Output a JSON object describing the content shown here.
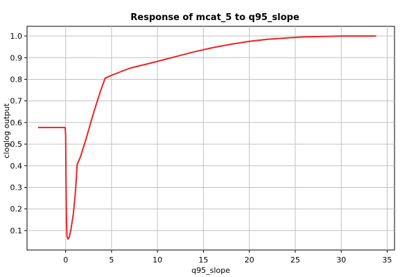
{
  "chart_data": {
    "type": "line",
    "title": "Response of mcat_5 to q95_slope",
    "xlabel": "q95_slope",
    "ylabel": "cloglog output",
    "xlim": [
      -4.2,
      35.8
    ],
    "ylim": [
      0.01,
      1.045
    ],
    "x_ticks": [
      0,
      5,
      10,
      15,
      20,
      25,
      30,
      35
    ],
    "y_ticks": [
      0.1,
      0.2,
      0.3,
      0.4,
      0.5,
      0.6,
      0.7,
      0.8,
      0.9,
      1.0
    ],
    "x_tick_labels": [
      "0",
      "5",
      "10",
      "15",
      "20",
      "25",
      "30",
      "35"
    ],
    "y_tick_labels": [
      "0.1",
      "0.2",
      "0.3",
      "0.4",
      "0.5",
      "0.6",
      "0.7",
      "0.8",
      "0.9",
      "1.0"
    ],
    "grid": true,
    "series": [
      {
        "color": "#ee2222",
        "x": [
          -3.0,
          -1.0,
          -0.05,
          0.0,
          0.05,
          0.1,
          0.15,
          0.25,
          0.4,
          0.6,
          0.85,
          1.05,
          1.15,
          1.25,
          1.6,
          2.2,
          2.8,
          3.3,
          3.8,
          4.3,
          5.0,
          6.0,
          7.0,
          8.0,
          9.0,
          10.0,
          12.0,
          14.0,
          16.0,
          18.0,
          20.0,
          22.0,
          24.0,
          26.0,
          28.0,
          30.0,
          32.0,
          33.8
        ],
        "y": [
          0.577,
          0.577,
          0.577,
          0.54,
          0.3,
          0.14,
          0.075,
          0.06,
          0.07,
          0.11,
          0.18,
          0.27,
          0.33,
          0.405,
          0.44,
          0.52,
          0.61,
          0.68,
          0.745,
          0.805,
          0.818,
          0.835,
          0.851,
          0.862,
          0.872,
          0.883,
          0.905,
          0.927,
          0.946,
          0.962,
          0.975,
          0.985,
          0.991,
          0.996,
          0.998,
          1.0,
          1.0,
          1.0
        ]
      }
    ]
  }
}
